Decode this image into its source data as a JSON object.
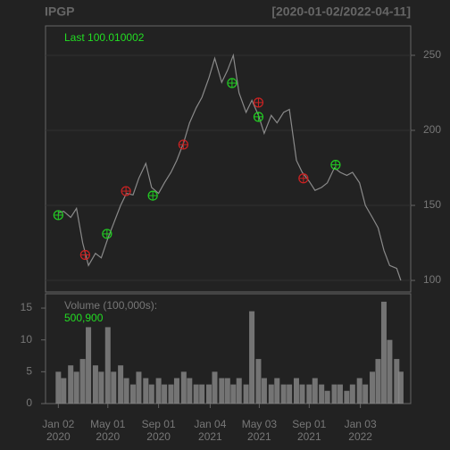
{
  "chart_data": [
    {
      "type": "line",
      "title": "IPGP",
      "subtitle": "[2020-01-02/2022-04-11]",
      "last_label": "Last 100.010002",
      "color": "#8a8a8a",
      "grid": true,
      "x": [
        "2020-01-02",
        "2020-01-15",
        "2020-02-01",
        "2020-02-15",
        "2020-03-01",
        "2020-03-15",
        "2020-04-01",
        "2020-04-15",
        "2020-05-01",
        "2020-05-15",
        "2020-06-01",
        "2020-06-15",
        "2020-07-01",
        "2020-07-15",
        "2020-08-01",
        "2020-08-15",
        "2020-09-01",
        "2020-09-15",
        "2020-10-01",
        "2020-10-15",
        "2020-11-01",
        "2020-11-15",
        "2020-12-01",
        "2020-12-15",
        "2021-01-01",
        "2021-01-15",
        "2021-02-01",
        "2021-02-15",
        "2021-03-01",
        "2021-03-15",
        "2021-04-01",
        "2021-04-15",
        "2021-05-01",
        "2021-05-15",
        "2021-06-01",
        "2021-06-15",
        "2021-07-01",
        "2021-07-15",
        "2021-08-01",
        "2021-08-15",
        "2021-09-01",
        "2021-09-15",
        "2021-10-01",
        "2021-10-15",
        "2021-11-01",
        "2021-11-15",
        "2021-12-01",
        "2021-12-15",
        "2022-01-01",
        "2022-01-15",
        "2022-02-01",
        "2022-02-15",
        "2022-03-01",
        "2022-03-15",
        "2022-04-01",
        "2022-04-11"
      ],
      "values": [
        145,
        146,
        142,
        148,
        125,
        110,
        118,
        115,
        128,
        138,
        150,
        158,
        157,
        168,
        178,
        162,
        158,
        165,
        172,
        180,
        192,
        205,
        215,
        222,
        235,
        248,
        232,
        240,
        250,
        225,
        212,
        220,
        210,
        198,
        210,
        205,
        212,
        214,
        180,
        172,
        166,
        160,
        162,
        165,
        175,
        172,
        170,
        172,
        165,
        150,
        142,
        135,
        120,
        110,
        108,
        100.010002
      ],
      "markers": [
        {
          "x": "2020-01-02",
          "y": 143.5,
          "color": "#22cc22"
        },
        {
          "x": "2020-03-07",
          "y": 117,
          "color": "#cc2222"
        },
        {
          "x": "2020-04-29",
          "y": 131,
          "color": "#22cc22"
        },
        {
          "x": "2020-06-14",
          "y": 159.5,
          "color": "#cc2222"
        },
        {
          "x": "2020-08-18",
          "y": 156.5,
          "color": "#22cc22"
        },
        {
          "x": "2020-10-31",
          "y": 190.5,
          "color": "#cc2222"
        },
        {
          "x": "2021-02-26",
          "y": 231.5,
          "color": "#22cc22"
        },
        {
          "x": "2021-05-01",
          "y": 218.5,
          "color": "#cc2222"
        },
        {
          "x": "2021-05-01",
          "y": 209,
          "color": "#22cc22"
        },
        {
          "x": "2021-08-18",
          "y": 168,
          "color": "#cc2222"
        },
        {
          "x": "2021-11-04",
          "y": 177,
          "color": "#22cc22"
        }
      ],
      "xlim": [
        "2019-12-02",
        "2022-05-05"
      ],
      "ylim": [
        92.3,
        269.6
      ],
      "yticks": [
        100,
        150,
        200,
        250
      ]
    },
    {
      "type": "bar",
      "title": "Volume (100,000s):",
      "last_label": "500,900",
      "color": "#8a8a8a",
      "x": [
        "2020-01-02",
        "2020-01-15",
        "2020-02-01",
        "2020-02-15",
        "2020-03-01",
        "2020-03-15",
        "2020-04-01",
        "2020-04-15",
        "2020-05-01",
        "2020-05-15",
        "2020-06-01",
        "2020-06-15",
        "2020-07-01",
        "2020-07-15",
        "2020-08-01",
        "2020-08-15",
        "2020-09-01",
        "2020-09-15",
        "2020-10-01",
        "2020-10-15",
        "2020-11-01",
        "2020-11-15",
        "2020-12-01",
        "2020-12-15",
        "2021-01-01",
        "2021-01-15",
        "2021-02-01",
        "2021-02-15",
        "2021-03-01",
        "2021-03-15",
        "2021-04-01",
        "2021-04-15",
        "2021-05-01",
        "2021-05-15",
        "2021-06-01",
        "2021-06-15",
        "2021-07-01",
        "2021-07-15",
        "2021-08-01",
        "2021-08-15",
        "2021-09-01",
        "2021-09-15",
        "2021-10-01",
        "2021-10-15",
        "2021-11-01",
        "2021-11-15",
        "2021-12-01",
        "2021-12-15",
        "2022-01-01",
        "2022-01-15",
        "2022-02-01",
        "2022-02-15",
        "2022-03-01",
        "2022-03-15",
        "2022-04-01",
        "2022-04-11"
      ],
      "values": [
        5,
        4,
        6,
        5,
        7,
        12,
        6,
        5,
        12,
        5,
        6,
        4,
        3,
        5,
        4,
        3,
        4,
        3,
        3,
        4,
        5,
        4,
        3,
        3,
        3,
        5,
        4,
        4,
        3,
        4,
        3,
        14.5,
        7,
        4,
        3,
        4,
        3,
        3,
        4,
        3,
        3,
        4,
        3,
        2,
        3,
        3,
        2,
        3,
        4,
        3,
        5,
        7,
        16,
        10,
        7,
        5.009
      ],
      "xlim": [
        "2019-12-02",
        "2022-05-05"
      ],
      "ylim": [
        0,
        17.25
      ],
      "yticks": [
        0,
        5,
        10,
        15
      ],
      "xticks": [
        {
          "value": "2020-01-02",
          "label": [
            "Jan 02",
            "2020"
          ]
        },
        {
          "value": "2020-05-01",
          "label": [
            "May 01",
            "2020"
          ]
        },
        {
          "value": "2020-09-01",
          "label": [
            "Sep 01",
            "2020"
          ]
        },
        {
          "value": "2021-01-04",
          "label": [
            "Jan 04",
            "2021"
          ]
        },
        {
          "value": "2021-05-03",
          "label": [
            "May 03",
            "2021"
          ]
        },
        {
          "value": "2021-09-01",
          "label": [
            "Sep 01",
            "2021"
          ]
        },
        {
          "value": "2022-01-03",
          "label": [
            "Jan 03",
            "2022"
          ]
        }
      ]
    }
  ]
}
